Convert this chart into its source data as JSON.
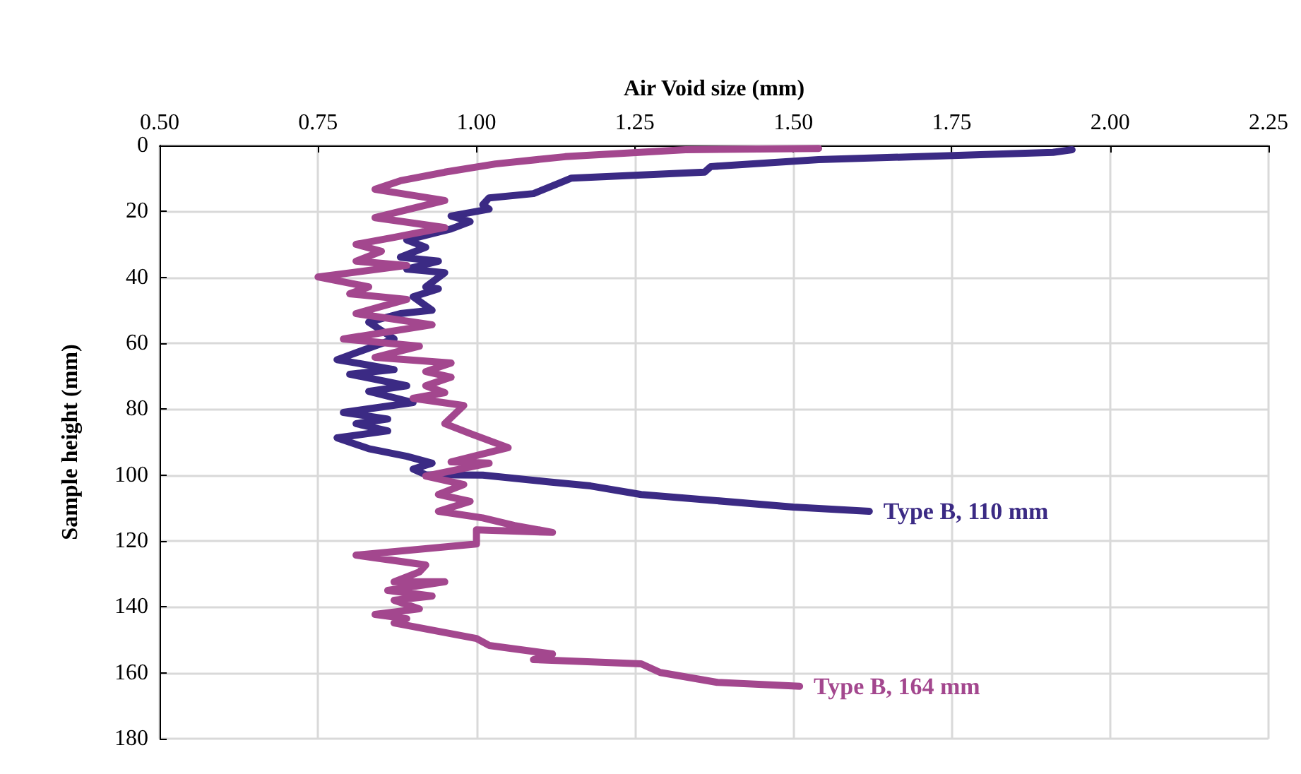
{
  "chart_data": {
    "type": "line",
    "xlabel": "Air Void size (mm)",
    "ylabel": "Sample height (mm)",
    "xlim": [
      0.5,
      2.25
    ],
    "xticks": [
      {
        "value": 0.5,
        "label": "0.50"
      },
      {
        "value": 0.75,
        "label": "0.75"
      },
      {
        "value": 1,
        "label": "1.00"
      },
      {
        "value": 1.25,
        "label": "1.25"
      },
      {
        "value": 1.5,
        "label": "1.50"
      },
      {
        "value": 1.75,
        "label": "1.75"
      },
      {
        "value": 2,
        "label": "2.00"
      },
      {
        "value": 2.25,
        "label": "2.25"
      }
    ],
    "ylim": [
      180,
      0
    ],
    "yticks": [
      0,
      20,
      40,
      60,
      80,
      100,
      120,
      140,
      160,
      180
    ],
    "grid": true,
    "legend": false,
    "marker": "none",
    "line_style": "solid",
    "series": [
      {
        "name": "Type B, 110 mm",
        "color": "#3b2a84",
        "x": [
          1.94,
          1.91,
          1.54,
          1.37,
          1.36,
          1.15,
          1.14,
          1.09,
          1.02,
          1.01,
          1.02,
          0.96,
          0.99,
          0.96,
          0.89,
          0.92,
          0.88,
          0.94,
          0.89,
          0.95,
          0.92,
          0.94,
          0.9,
          0.93,
          0.88,
          0.83,
          0.87,
          0.78,
          0.87,
          0.8,
          0.89,
          0.83,
          0.9,
          0.79,
          0.86,
          0.81,
          0.86,
          0.78,
          0.83,
          0.89,
          0.93,
          0.9,
          0.92,
          1.01,
          1.11,
          1.18,
          1.26,
          1.5,
          1.62
        ],
        "values": [
          1.3,
          2.1,
          4.3,
          6.4,
          8.1,
          9.9,
          10.7,
          14.6,
          15.9,
          18,
          19.3,
          21.4,
          23.1,
          25.3,
          28.7,
          30.9,
          33.9,
          35.1,
          37.5,
          38.6,
          42.9,
          43.5,
          45.9,
          50,
          51,
          53.6,
          58.7,
          65,
          68,
          69.4,
          72.9,
          74.6,
          78,
          81,
          83,
          84.4,
          86.6,
          88.7,
          92,
          94.3,
          96.4,
          98.2,
          99.9,
          100,
          102,
          103.3,
          105.9,
          109.7,
          111
        ]
      },
      {
        "name": "Type B, 164 mm",
        "color": "#a3478e",
        "x": [
          1.54,
          1.33,
          1.14,
          1.03,
          0.95,
          0.88,
          0.84,
          0.95,
          0.84,
          0.95,
          0.87,
          0.81,
          0.85,
          0.81,
          0.89,
          0.75,
          0.83,
          0.8,
          0.89,
          0.81,
          0.93,
          0.79,
          0.91,
          0.84,
          0.96,
          0.92,
          0.96,
          0.92,
          0.95,
          0.9,
          0.98,
          0.95,
          0.99,
          1.05,
          0.96,
          1.02,
          0.92,
          0.98,
          0.94,
          0.99,
          0.94,
          1.01,
          1.06,
          1.12,
          1.0,
          1.0,
          0.81,
          0.92,
          0.91,
          0.87,
          0.95,
          0.86,
          0.93,
          0.87,
          0.91,
          0.84,
          0.89,
          0.87,
          1.0,
          1.02,
          1.12,
          1.09,
          1.26,
          1.29,
          1.38,
          1.51
        ],
        "values": [
          0.9,
          1.3,
          3.4,
          5.6,
          8.1,
          10.7,
          13.3,
          16.7,
          21.9,
          24.9,
          27.9,
          30,
          32.1,
          35.1,
          36.4,
          39.9,
          42.9,
          45,
          46.7,
          51,
          54.4,
          58.7,
          60.9,
          64.3,
          66,
          68.6,
          70.3,
          72.9,
          75,
          76.7,
          78.9,
          84.4,
          87.4,
          91.7,
          96,
          96.4,
          100.3,
          102.9,
          105.9,
          108,
          111,
          113,
          115.3,
          117.4,
          116.6,
          120.9,
          124.3,
          127.3,
          129.4,
          132.4,
          132.4,
          135,
          136.7,
          138,
          140.6,
          142.3,
          143.6,
          144.9,
          149.6,
          151.7,
          154.3,
          156,
          157.3,
          159.9,
          162.9,
          164.1
        ]
      }
    ]
  }
}
